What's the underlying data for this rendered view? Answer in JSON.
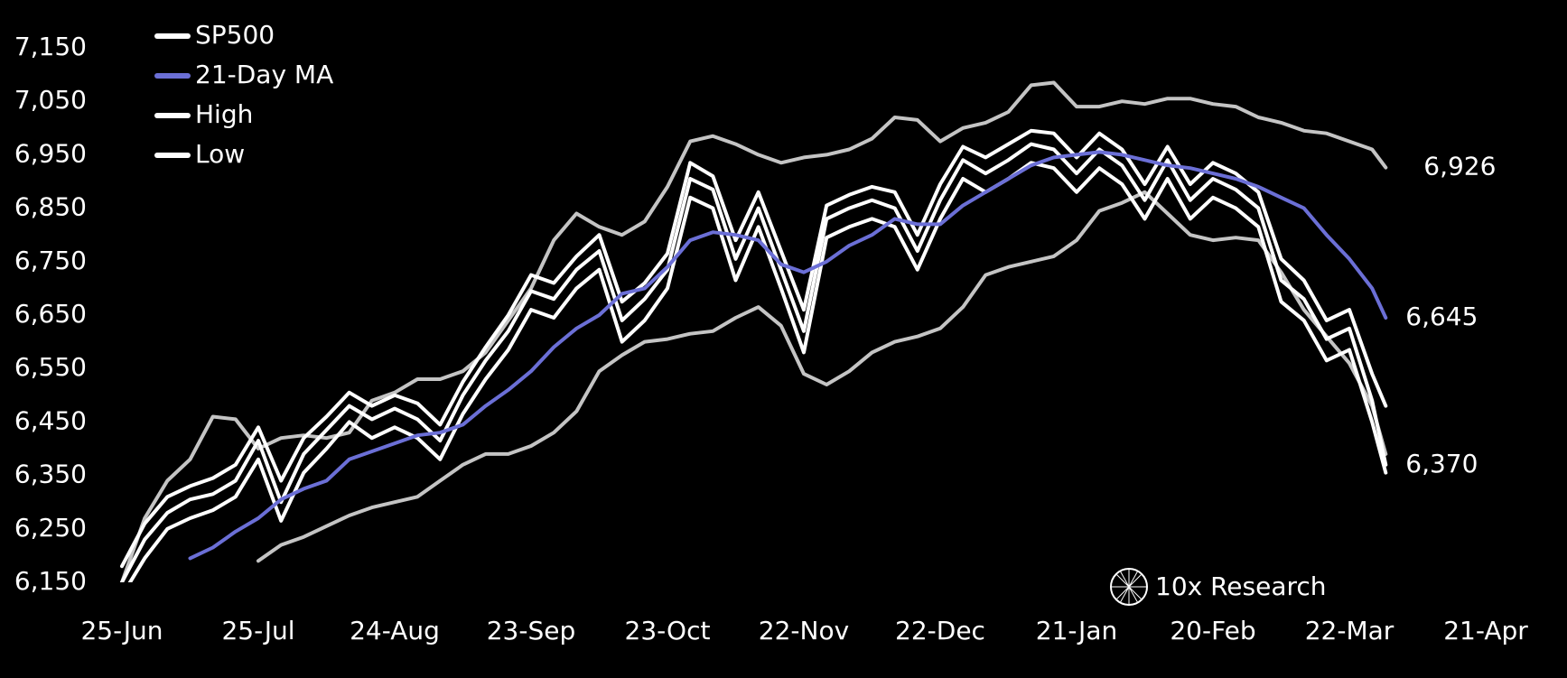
{
  "chart_data": {
    "type": "line",
    "x": [
      "25-Jun",
      "30-Jun",
      "5-Jul",
      "10-Jul",
      "15-Jul",
      "20-Jul",
      "25-Jul",
      "30-Jul",
      "4-Aug",
      "9-Aug",
      "14-Aug",
      "19-Aug",
      "24-Aug",
      "29-Aug",
      "3-Sep",
      "8-Sep",
      "13-Sep",
      "18-Sep",
      "23-Sep",
      "28-Sep",
      "3-Oct",
      "8-Oct",
      "13-Oct",
      "18-Oct",
      "23-Oct",
      "28-Oct",
      "2-Nov",
      "7-Nov",
      "12-Nov",
      "17-Nov",
      "22-Nov",
      "27-Nov",
      "2-Dec",
      "7-Dec",
      "12-Dec",
      "17-Dec",
      "22-Dec",
      "27-Dec",
      "1-Jan",
      "6-Jan",
      "11-Jan",
      "16-Jan",
      "21-Jan",
      "26-Jan",
      "31-Jan",
      "5-Feb",
      "10-Feb",
      "15-Feb",
      "20-Feb",
      "25-Feb",
      "2-Mar",
      "7-Mar",
      "12-Mar",
      "17-Mar",
      "22-Mar",
      "27-Mar",
      "30-Mar"
    ],
    "series": [
      {
        "color": "#c4c4c4",
        "values": [
          6150,
          6270,
          6340,
          6380,
          6460,
          6455,
          6400,
          6420,
          6425,
          6420,
          6430,
          6490,
          6505,
          6530,
          6530,
          6545,
          6580,
          6640,
          6700,
          6790,
          6840,
          6815,
          6800,
          6825,
          6890,
          6975,
          6985,
          6970,
          6950,
          6935,
          6945,
          6950,
          6960,
          6980,
          7020,
          7015,
          6975,
          7000,
          7010,
          7030,
          7080,
          7085,
          7040,
          7040,
          7050,
          7045,
          7055,
          7055,
          7045,
          7040,
          7020,
          7010,
          6995,
          6990,
          6975,
          6960,
          6926
        ]
      },
      {
        "color": "#c4c4c4",
        "values": [
          null,
          null,
          null,
          null,
          null,
          null,
          6190,
          6220,
          6235,
          6255,
          6275,
          6290,
          6300,
          6310,
          6340,
          6370,
          6390,
          6390,
          6405,
          6430,
          6470,
          6545,
          6575,
          6600,
          6605,
          6615,
          6620,
          6645,
          6665,
          6630,
          6540,
          6520,
          6545,
          6580,
          6600,
          6610,
          6625,
          6665,
          6725,
          6740,
          6750,
          6760,
          6790,
          6845,
          6860,
          6880,
          6840,
          6800,
          6790,
          6795,
          6790,
          6730,
          6660,
          6610,
          6560,
          6480,
          6390
        ]
      },
      {
        "name": "High",
        "color": "#ffffff",
        "values": [
          6180,
          6260,
          6310,
          6330,
          6345,
          6370,
          6440,
          6340,
          6420,
          6460,
          6505,
          6480,
          6500,
          6485,
          6445,
          6525,
          6590,
          6650,
          6725,
          6710,
          6760,
          6800,
          6675,
          6710,
          6765,
          6935,
          6910,
          6790,
          6880,
          6770,
          6660,
          6855,
          6875,
          6890,
          6880,
          6800,
          6895,
          6965,
          6945,
          6970,
          6995,
          6990,
          6945,
          6990,
          6960,
          6895,
          6965,
          6895,
          6935,
          6915,
          6880,
          6755,
          6715,
          6640,
          6660,
          6540,
          6480
        ]
      },
      {
        "name": "Low",
        "color": "#ffffff",
        "values": [
          6125,
          6195,
          6250,
          6270,
          6285,
          6310,
          6380,
          6265,
          6355,
          6400,
          6450,
          6420,
          6440,
          6420,
          6380,
          6465,
          6530,
          6585,
          6660,
          6645,
          6700,
          6735,
          6600,
          6640,
          6700,
          6870,
          6850,
          6715,
          6815,
          6700,
          6580,
          6795,
          6815,
          6830,
          6815,
          6735,
          6830,
          6905,
          6880,
          6905,
          6935,
          6925,
          6880,
          6925,
          6895,
          6830,
          6905,
          6830,
          6870,
          6850,
          6815,
          6675,
          6640,
          6565,
          6585,
          6450,
          6355
        ]
      },
      {
        "name": "SP500",
        "color": "#ffffff",
        "values": [
          6150,
          6230,
          6280,
          6305,
          6315,
          6340,
          6415,
          6300,
          6390,
          6435,
          6480,
          6455,
          6475,
          6455,
          6415,
          6500,
          6565,
          6620,
          6695,
          6680,
          6735,
          6770,
          6640,
          6680,
          6735,
          6905,
          6885,
          6755,
          6850,
          6735,
          6620,
          6830,
          6850,
          6865,
          6850,
          6770,
          6865,
          6940,
          6915,
          6940,
          6970,
          6960,
          6915,
          6960,
          6930,
          6865,
          6940,
          6865,
          6905,
          6885,
          6850,
          6715,
          6680,
          6605,
          6625,
          6490,
          6370
        ]
      },
      {
        "name": "21-Day MA",
        "color": "#6b6fd6",
        "values": [
          null,
          null,
          null,
          6195,
          6215,
          6245,
          6270,
          6305,
          6325,
          6340,
          6380,
          6395,
          6410,
          6425,
          6430,
          6445,
          6480,
          6510,
          6545,
          6590,
          6625,
          6650,
          6690,
          6700,
          6740,
          6790,
          6805,
          6800,
          6790,
          6745,
          6730,
          6750,
          6780,
          6800,
          6830,
          6820,
          6820,
          6855,
          6880,
          6905,
          6930,
          6945,
          6950,
          6955,
          6950,
          6940,
          6930,
          6925,
          6915,
          6905,
          6890,
          6870,
          6850,
          6800,
          6755,
          6700,
          6645
        ]
      }
    ],
    "legend_order": [
      "SP500",
      "21-Day MA",
      "High",
      "Low"
    ],
    "annotations": [
      {
        "text": "6,926",
        "value": 6926,
        "color": "#ffffff"
      },
      {
        "text": "6,645",
        "value": 6645,
        "color": "#6b6fd6"
      },
      {
        "text": "6,370",
        "value": 6370,
        "color": "#ffffff"
      }
    ],
    "xlim": [
      "25-Jun",
      "21-Apr"
    ],
    "xticks": [
      "25-Jun",
      "25-Jul",
      "24-Aug",
      "23-Sep",
      "23-Oct",
      "22-Nov",
      "22-Dec",
      "21-Jan",
      "20-Feb",
      "22-Mar",
      "21-Apr"
    ],
    "ylim": [
      6150,
      7150
    ],
    "yticks": [
      {
        "value": 6150,
        "label": "6,150"
      },
      {
        "value": 6250,
        "label": "6,250"
      },
      {
        "value": 6350,
        "label": "6,350"
      },
      {
        "value": 6450,
        "label": "6,450"
      },
      {
        "value": 6550,
        "label": "6,550"
      },
      {
        "value": 6650,
        "label": "6,650"
      },
      {
        "value": 6750,
        "label": "6,750"
      },
      {
        "value": 6850,
        "label": "6,850"
      },
      {
        "value": 6950,
        "label": "6,950"
      },
      {
        "value": 7050,
        "label": "7,050"
      },
      {
        "value": 7150,
        "label": "7,150"
      }
    ],
    "grid": false,
    "watermark": "10x Research"
  }
}
